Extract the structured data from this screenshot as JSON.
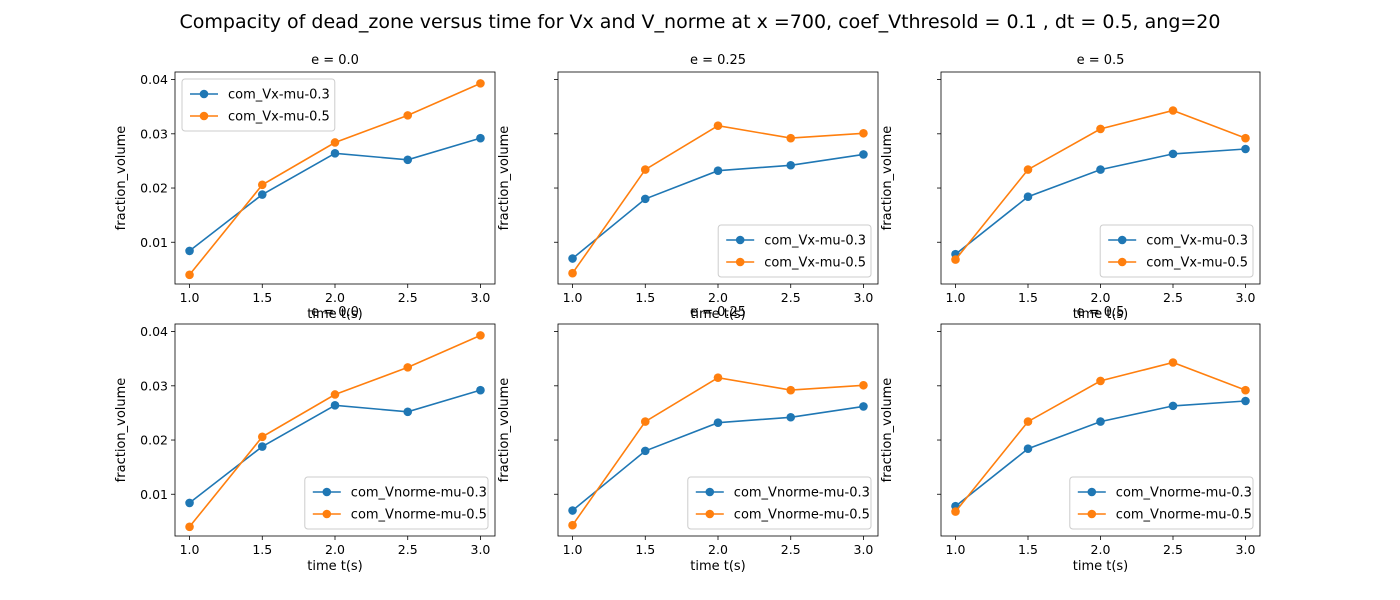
{
  "figure": {
    "title": "Compacity of dead_zone versus time for Vx and V_norme at x =700, coef_Vthresold = 0.1 , dt = 0.5, ang=20"
  },
  "chart_data": [
    {
      "type": "line",
      "title": "e = 0.0",
      "xlabel": "time t(s)",
      "ylabel": "fraction_volume",
      "x": [
        1.0,
        1.5,
        2.0,
        2.5,
        3.0
      ],
      "x_tick_labels": [
        "1.0",
        "1.5",
        "2.0",
        "2.5",
        "3.0"
      ],
      "xlim": [
        0.9,
        3.1
      ],
      "ylim": [
        0.0023,
        0.0414
      ],
      "y_ticks": [
        0.01,
        0.02,
        0.03,
        0.04
      ],
      "y_tick_labels": [
        "0.01",
        "0.02",
        "0.03",
        "0.04"
      ],
      "legend_position": "upper-left",
      "series": [
        {
          "name": "com_Vx-mu-0.3",
          "color": "#1f77b4",
          "values": [
            0.0084,
            0.0188,
            0.0264,
            0.0252,
            0.0292
          ]
        },
        {
          "name": "com_Vx-mu-0.5",
          "color": "#ff7f0e",
          "values": [
            0.004,
            0.0206,
            0.0284,
            0.0334,
            0.0393
          ]
        }
      ]
    },
    {
      "type": "line",
      "title": "e = 0.25",
      "xlabel": "time t(s)",
      "ylabel": "fraction_volume",
      "x": [
        1.0,
        1.5,
        2.0,
        2.5,
        3.0
      ],
      "x_tick_labels": [
        "1.0",
        "1.5",
        "2.0",
        "2.5",
        "3.0"
      ],
      "xlim": [
        0.9,
        3.1
      ],
      "ylim": [
        0.0023,
        0.0414
      ],
      "y_ticks": [
        0.01,
        0.02,
        0.03,
        0.04
      ],
      "y_tick_labels": [
        "",
        "",
        "",
        ""
      ],
      "legend_position": "lower-right",
      "series": [
        {
          "name": "com_Vx-mu-0.3",
          "color": "#1f77b4",
          "values": [
            0.007,
            0.018,
            0.0232,
            0.0242,
            0.0262
          ]
        },
        {
          "name": "com_Vx-mu-0.5",
          "color": "#ff7f0e",
          "values": [
            0.0043,
            0.0234,
            0.0315,
            0.0292,
            0.0301
          ]
        }
      ]
    },
    {
      "type": "line",
      "title": "e = 0.5",
      "xlabel": "time t(s)",
      "ylabel": "fraction_volume",
      "x": [
        1.0,
        1.5,
        2.0,
        2.5,
        3.0
      ],
      "x_tick_labels": [
        "1.0",
        "1.5",
        "2.0",
        "2.5",
        "3.0"
      ],
      "xlim": [
        0.9,
        3.1
      ],
      "ylim": [
        0.0023,
        0.0414
      ],
      "y_ticks": [
        0.01,
        0.02,
        0.03,
        0.04
      ],
      "y_tick_labels": [
        "",
        "",
        "",
        ""
      ],
      "legend_position": "lower-right",
      "series": [
        {
          "name": "com_Vx-mu-0.3",
          "color": "#1f77b4",
          "values": [
            0.0078,
            0.0184,
            0.0234,
            0.0263,
            0.0272
          ]
        },
        {
          "name": "com_Vx-mu-0.5",
          "color": "#ff7f0e",
          "values": [
            0.0068,
            0.0234,
            0.0309,
            0.0343,
            0.0292
          ]
        }
      ]
    },
    {
      "type": "line",
      "title": "e = 0.0",
      "xlabel": "time t(s)",
      "ylabel": "fraction_volume",
      "x": [
        1.0,
        1.5,
        2.0,
        2.5,
        3.0
      ],
      "x_tick_labels": [
        "1.0",
        "1.5",
        "2.0",
        "2.5",
        "3.0"
      ],
      "xlim": [
        0.9,
        3.1
      ],
      "ylim": [
        0.0023,
        0.0414
      ],
      "y_ticks": [
        0.01,
        0.02,
        0.03,
        0.04
      ],
      "y_tick_labels": [
        "0.01",
        "0.02",
        "0.03",
        "0.04"
      ],
      "legend_position": "lower-right",
      "series": [
        {
          "name": "com_Vnorme-mu-0.3",
          "color": "#1f77b4",
          "values": [
            0.0084,
            0.0188,
            0.0264,
            0.0252,
            0.0292
          ]
        },
        {
          "name": "com_Vnorme-mu-0.5",
          "color": "#ff7f0e",
          "values": [
            0.004,
            0.0206,
            0.0284,
            0.0334,
            0.0393
          ]
        }
      ]
    },
    {
      "type": "line",
      "title": "e = 0.25",
      "xlabel": "time t(s)",
      "ylabel": "fraction_volume",
      "x": [
        1.0,
        1.5,
        2.0,
        2.5,
        3.0
      ],
      "x_tick_labels": [
        "1.0",
        "1.5",
        "2.0",
        "2.5",
        "3.0"
      ],
      "xlim": [
        0.9,
        3.1
      ],
      "ylim": [
        0.0023,
        0.0414
      ],
      "y_ticks": [
        0.01,
        0.02,
        0.03,
        0.04
      ],
      "y_tick_labels": [
        "",
        "",
        "",
        ""
      ],
      "legend_position": "lower-right",
      "series": [
        {
          "name": "com_Vnorme-mu-0.3",
          "color": "#1f77b4",
          "values": [
            0.007,
            0.018,
            0.0232,
            0.0242,
            0.0262
          ]
        },
        {
          "name": "com_Vnorme-mu-0.5",
          "color": "#ff7f0e",
          "values": [
            0.0043,
            0.0234,
            0.0315,
            0.0292,
            0.0301
          ]
        }
      ]
    },
    {
      "type": "line",
      "title": "e = 0.5",
      "xlabel": "time t(s)",
      "ylabel": "fraction_volume",
      "x": [
        1.0,
        1.5,
        2.0,
        2.5,
        3.0
      ],
      "x_tick_labels": [
        "1.0",
        "1.5",
        "2.0",
        "2.5",
        "3.0"
      ],
      "xlim": [
        0.9,
        3.1
      ],
      "ylim": [
        0.0023,
        0.0414
      ],
      "y_ticks": [
        0.01,
        0.02,
        0.03,
        0.04
      ],
      "y_tick_labels": [
        "",
        "",
        "",
        ""
      ],
      "legend_position": "lower-right",
      "series": [
        {
          "name": "com_Vnorme-mu-0.3",
          "color": "#1f77b4",
          "values": [
            0.0078,
            0.0184,
            0.0234,
            0.0263,
            0.0272
          ]
        },
        {
          "name": "com_Vnorme-mu-0.5",
          "color": "#ff7f0e",
          "values": [
            0.0068,
            0.0234,
            0.0309,
            0.0343,
            0.0292
          ]
        }
      ]
    }
  ]
}
